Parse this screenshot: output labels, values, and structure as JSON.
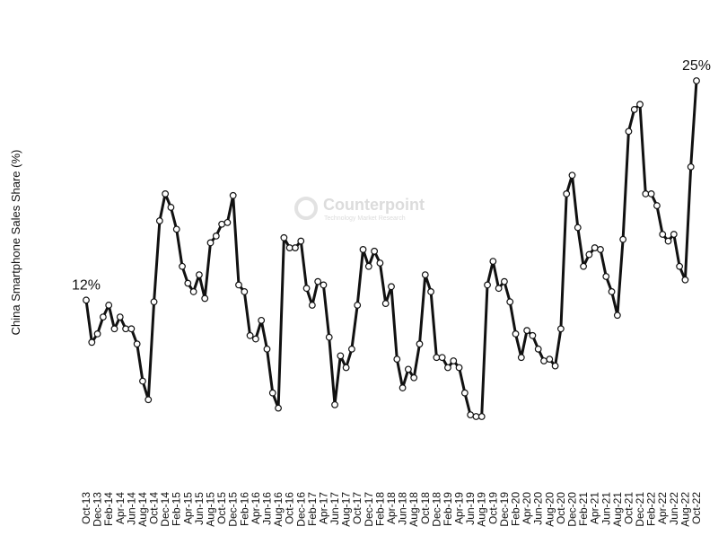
{
  "chart_data": {
    "type": "line",
    "y_label": "China Smartphone Sales Share (%)",
    "watermark": {
      "title": "Counterpoint",
      "subtitle": "Technology Market Research"
    },
    "categories": [
      "Oct-13",
      null,
      "Dec-13",
      null,
      "Feb-14",
      null,
      "Apr-14",
      null,
      "Jun-14",
      null,
      "Aug-14",
      null,
      "Oct-14",
      null,
      "Dec-14",
      null,
      "Feb-15",
      null,
      "Apr-15",
      null,
      "Jun-15",
      null,
      "Aug-15",
      null,
      "Oct-15",
      null,
      "Dec-15",
      null,
      "Feb-16",
      null,
      "Apr-16",
      null,
      "Jun-16",
      null,
      "Aug-16",
      null,
      "Oct-16",
      null,
      "Dec-16",
      null,
      "Feb-17",
      null,
      "Apr-17",
      null,
      "Jun-17",
      null,
      "Aug-17",
      null,
      "Oct-17",
      null,
      "Dec-17",
      null,
      "Feb-18",
      null,
      "Apr-18",
      null,
      "Jun-18",
      null,
      "Aug-18",
      null,
      "Oct-18",
      null,
      "Dec-18",
      null,
      "Feb-19",
      null,
      "Apr-19",
      null,
      "Jun-19",
      null,
      "Aug-19",
      null,
      "Oct-19",
      null,
      "Dec-19",
      null,
      "Feb-20",
      null,
      "Apr-20",
      null,
      "Jun-20",
      null,
      "Aug-20",
      null,
      "Oct-20",
      null,
      "Dec-20",
      null,
      "Feb-21",
      null,
      "Apr-21",
      null,
      "Jun-21",
      null,
      "Aug-21",
      null,
      "Oct-21",
      null,
      "Dec-21",
      null,
      "Feb-22",
      null,
      "Apr-22",
      null,
      "Jun-22",
      null,
      "Aug-22",
      null,
      "Oct-22"
    ],
    "values": [
      12.0,
      9.5,
      10.0,
      11.0,
      11.7,
      10.3,
      11.0,
      10.3,
      10.3,
      9.4,
      7.2,
      6.1,
      11.9,
      16.7,
      18.3,
      17.5,
      16.2,
      14.0,
      13.0,
      12.5,
      13.5,
      12.1,
      15.4,
      15.8,
      16.5,
      16.6,
      18.2,
      12.9,
      12.5,
      9.9,
      9.7,
      10.8,
      9.1,
      6.5,
      5.6,
      15.7,
      15.1,
      15.1,
      15.5,
      12.7,
      11.7,
      13.1,
      12.9,
      9.8,
      5.8,
      8.7,
      8.0,
      9.1,
      11.7,
      15.0,
      14.0,
      14.9,
      14.2,
      11.8,
      12.8,
      8.5,
      6.8,
      7.9,
      7.4,
      9.4,
      13.5,
      12.5,
      8.6,
      8.6,
      8.0,
      8.4,
      8.0,
      6.5,
      5.2,
      5.1,
      5.1,
      12.9,
      14.3,
      12.7,
      13.1,
      11.9,
      10.0,
      8.6,
      10.2,
      9.9,
      9.1,
      8.4,
      8.5,
      8.1,
      10.3,
      18.3,
      19.4,
      16.3,
      14.0,
      14.7,
      15.1,
      15.0,
      13.4,
      12.5,
      11.1,
      15.6,
      22.0,
      23.3,
      23.6,
      18.3,
      18.3,
      17.6,
      15.9,
      15.5,
      15.9,
      14.0,
      13.2,
      19.9,
      25.0
    ],
    "value_labels": [
      "12%",
      null,
      null,
      null,
      null,
      null,
      null,
      null,
      null,
      null,
      null,
      null,
      null,
      null,
      null,
      null,
      null,
      null,
      null,
      null,
      null,
      null,
      null,
      null,
      null,
      null,
      null,
      null,
      null,
      null,
      null,
      null,
      null,
      null,
      null,
      null,
      null,
      null,
      null,
      null,
      null,
      null,
      null,
      null,
      null,
      null,
      null,
      null,
      null,
      null,
      null,
      null,
      null,
      null,
      null,
      null,
      null,
      null,
      null,
      null,
      null,
      null,
      null,
      null,
      null,
      null,
      null,
      null,
      null,
      null,
      null,
      null,
      null,
      null,
      null,
      null,
      null,
      null,
      null,
      null,
      null,
      null,
      null,
      null,
      null,
      null,
      null,
      null,
      null,
      null,
      null,
      null,
      null,
      null,
      null,
      null,
      null,
      null,
      null,
      null,
      null,
      null,
      null,
      null,
      null,
      null,
      null,
      null,
      "25%"
    ],
    "color": "#111111"
  }
}
